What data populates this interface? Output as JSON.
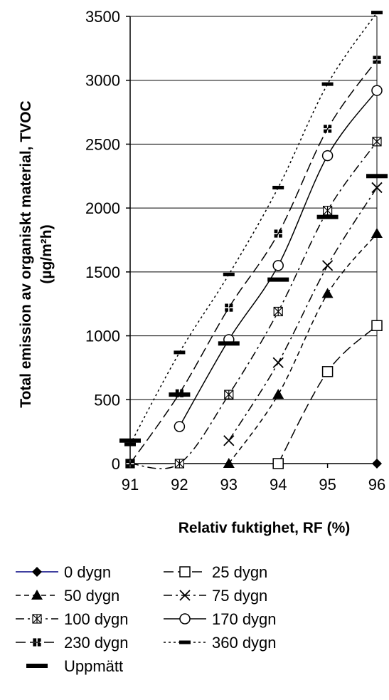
{
  "chart_data": {
    "type": "line",
    "title": "",
    "xlabel": "Relativ fuktighet, RF (%)",
    "ylabel_line1": "Total emission av organiskt material, TVOC",
    "ylabel_line2": "(µg/m²h)",
    "x_ticks": [
      91,
      92,
      93,
      94,
      95,
      96
    ],
    "y_ticks": [
      0,
      500,
      1000,
      1500,
      2000,
      2500,
      3000,
      3500
    ],
    "xlim": [
      91,
      96
    ],
    "ylim": [
      0,
      3500
    ],
    "grid": "horizontal",
    "legend_position": "bottom",
    "series": [
      {
        "name": "0 dygn",
        "marker": "diamond",
        "dash": "solid",
        "color": "#000080",
        "line": false,
        "points": [
          [
            96,
            0
          ]
        ]
      },
      {
        "name": "25 dygn",
        "marker": "square-open",
        "dash": "long-dash",
        "color": "#000000",
        "line": true,
        "points": [
          [
            94,
            0
          ],
          [
            95,
            720
          ],
          [
            96,
            1080
          ]
        ]
      },
      {
        "name": "50 dygn",
        "marker": "triangle",
        "dash": "short-dash",
        "color": "#000000",
        "line": true,
        "points": [
          [
            93,
            0
          ],
          [
            94,
            540
          ],
          [
            95,
            1330
          ],
          [
            96,
            1800
          ]
        ]
      },
      {
        "name": "75 dygn",
        "marker": "x",
        "dash": "dash-dot",
        "color": "#000000",
        "line": true,
        "points": [
          [
            93,
            180
          ],
          [
            94,
            790
          ],
          [
            95,
            1550
          ],
          [
            96,
            2160
          ]
        ]
      },
      {
        "name": "100 dygn",
        "marker": "square-pattern",
        "dash": "dash-dot",
        "color": "#000000",
        "line": true,
        "points": [
          [
            91,
            0
          ],
          [
            92,
            0
          ],
          [
            93,
            540
          ],
          [
            94,
            1190
          ],
          [
            95,
            1980
          ],
          [
            96,
            2520
          ]
        ]
      },
      {
        "name": "170 dygn",
        "marker": "circle-open",
        "dash": "solid",
        "color": "#000000",
        "line": true,
        "points": [
          [
            92,
            290
          ],
          [
            93,
            970
          ],
          [
            94,
            1550
          ],
          [
            95,
            2410
          ],
          [
            96,
            2920
          ]
        ]
      },
      {
        "name": "230 dygn",
        "marker": "square-grid",
        "dash": "long-dash",
        "color": "#000000",
        "line": true,
        "points": [
          [
            91,
            0
          ],
          [
            92,
            550
          ],
          [
            93,
            1220
          ],
          [
            94,
            1800
          ],
          [
            95,
            2620
          ],
          [
            96,
            3160
          ]
        ]
      },
      {
        "name": "360 dygn",
        "marker": "dash",
        "dash": "dotted",
        "color": "#000000",
        "line": true,
        "points": [
          [
            91,
            150
          ],
          [
            92,
            870
          ],
          [
            93,
            1480
          ],
          [
            94,
            2160
          ],
          [
            95,
            2970
          ],
          [
            96,
            3530
          ]
        ]
      },
      {
        "name": "Uppmätt",
        "marker": "bar",
        "dash": "none",
        "color": "#000000",
        "line": false,
        "points": [
          [
            91,
            180
          ],
          [
            92,
            540
          ],
          [
            93,
            940
          ],
          [
            94,
            1440
          ],
          [
            95,
            1930
          ],
          [
            96,
            2250
          ]
        ]
      }
    ]
  }
}
